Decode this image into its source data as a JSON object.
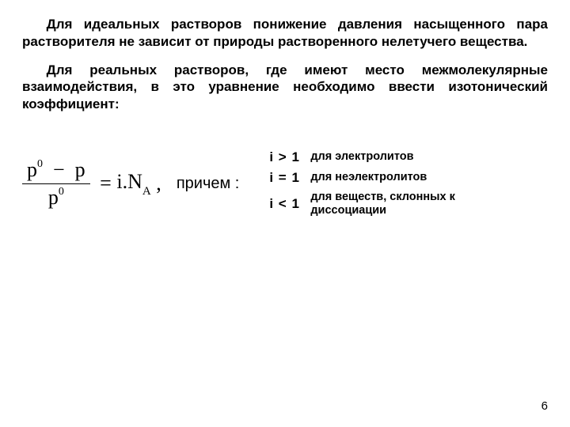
{
  "para1": "Для идеальных растворов понижение давления насыщенного пара растворителя не зависит от природы растворенного нелетучего вещества.",
  "para2": "Для реальных растворов, где имеют место межмолекулярные взаимодействия, в это уравнение необходимо ввести изотонический коэффициент:",
  "formula": {
    "num_left": "p",
    "num_minus": "−",
    "num_right": "p",
    "den": "p",
    "eq": "=",
    "rhs_i": "i.N",
    "rhs_sub": "A",
    "comma": ",",
    "after_word": "причем :"
  },
  "conditions": [
    {
      "math": "i > 1",
      "label": "для электролитов"
    },
    {
      "math": "i = 1",
      "label": "для неэлектролитов"
    },
    {
      "math": "i < 1",
      "label": "для веществ, склонных к диссоциации"
    }
  ],
  "pagenum": "6"
}
